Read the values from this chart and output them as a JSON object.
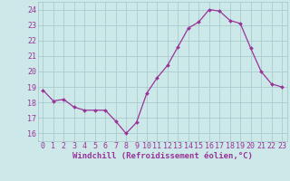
{
  "x": [
    0,
    1,
    2,
    3,
    4,
    5,
    6,
    7,
    8,
    9,
    10,
    11,
    12,
    13,
    14,
    15,
    16,
    17,
    18,
    19,
    20,
    21,
    22,
    23
  ],
  "y": [
    18.8,
    18.1,
    18.2,
    17.7,
    17.5,
    17.5,
    17.5,
    16.8,
    16.0,
    16.7,
    18.6,
    19.6,
    20.4,
    21.6,
    22.8,
    23.2,
    24.0,
    23.9,
    23.3,
    23.1,
    21.5,
    20.0,
    19.2,
    19.0
  ],
  "line_color": "#993399",
  "marker_color": "#993399",
  "bg_color": "#cce8e8",
  "grid_color": "#aacccc",
  "xlabel": "Windchill (Refroidissement éolien,°C)",
  "xlabel_color": "#993399",
  "tick_color": "#993399",
  "ylim": [
    15.5,
    24.5
  ],
  "yticks": [
    16,
    17,
    18,
    19,
    20,
    21,
    22,
    23,
    24
  ],
  "xticks": [
    0,
    1,
    2,
    3,
    4,
    5,
    6,
    7,
    8,
    9,
    10,
    11,
    12,
    13,
    14,
    15,
    16,
    17,
    18,
    19,
    20,
    21,
    22,
    23
  ],
  "xlabel_fontsize": 6.5,
  "tick_fontsize": 6.0,
  "xlim": [
    -0.5,
    23.5
  ]
}
